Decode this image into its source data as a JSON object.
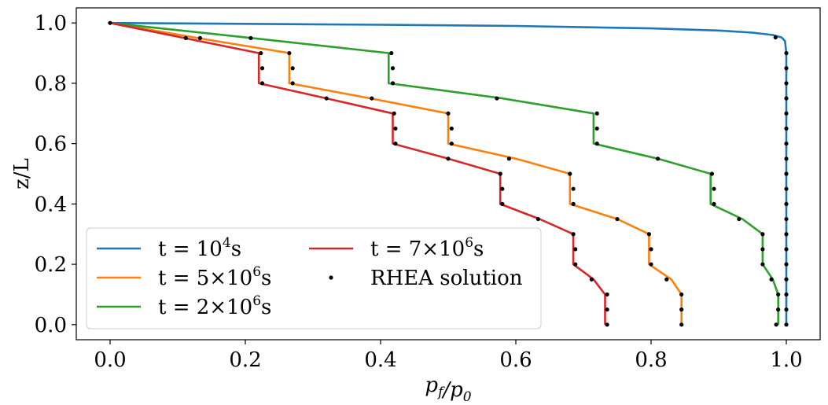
{
  "chart_data": {
    "type": "line",
    "xlabel": "p_f/p_0",
    "ylabel": "z/L",
    "xlim": [
      -0.05,
      1.05
    ],
    "ylim": [
      -0.05,
      1.05
    ],
    "xticks": [
      "0.0",
      "0.2",
      "0.4",
      "0.6",
      "0.8",
      "1.0"
    ],
    "xtick_values": [
      0.0,
      0.2,
      0.4,
      0.6,
      0.8,
      1.0
    ],
    "yticks": [
      "0.0",
      "0.2",
      "0.4",
      "0.6",
      "0.8",
      "1.0"
    ],
    "ytick_values": [
      0.0,
      0.2,
      0.4,
      0.6,
      0.8,
      1.0
    ],
    "legend_position": "bottom-left",
    "legend_columns": 2,
    "series": [
      {
        "name": "t = 10⁴s",
        "label_parts": {
          "prefix": "t = 10",
          "sup": "4",
          "suffix": "s"
        },
        "color": "#1f77b4",
        "points": [
          [
            0.0,
            1.0
          ],
          [
            0.2,
            0.997
          ],
          [
            0.4,
            0.994
          ],
          [
            0.6,
            0.99
          ],
          [
            0.7,
            0.986
          ],
          [
            0.8,
            0.982
          ],
          [
            0.9,
            0.975
          ],
          [
            0.95,
            0.968
          ],
          [
            0.98,
            0.96
          ],
          [
            0.993,
            0.952
          ],
          [
            0.998,
            0.94
          ],
          [
            1.0,
            0.9
          ],
          [
            1.0,
            0.0
          ]
        ]
      },
      {
        "name": "t = 5×10⁶s",
        "label_parts": {
          "prefix": "t = 5×10",
          "sup": "6",
          "suffix": "s"
        },
        "color": "#ff7f0e",
        "points": [
          [
            0.0,
            1.0
          ],
          [
            0.13,
            0.95
          ],
          [
            0.265,
            0.9
          ],
          [
            0.265,
            0.8
          ],
          [
            0.385,
            0.75
          ],
          [
            0.5,
            0.7
          ],
          [
            0.5,
            0.6
          ],
          [
            0.6,
            0.55
          ],
          [
            0.68,
            0.5
          ],
          [
            0.68,
            0.4
          ],
          [
            0.75,
            0.35
          ],
          [
            0.797,
            0.3
          ],
          [
            0.797,
            0.2
          ],
          [
            0.83,
            0.15
          ],
          [
            0.845,
            0.1
          ],
          [
            0.845,
            0.0
          ]
        ]
      },
      {
        "name": "t = 2×10⁶s",
        "label_parts": {
          "prefix": "t = 2×10",
          "sup": "6",
          "suffix": "s"
        },
        "color": "#2ca02c",
        "points": [
          [
            0.0,
            1.0
          ],
          [
            0.21,
            0.95
          ],
          [
            0.412,
            0.9
          ],
          [
            0.412,
            0.8
          ],
          [
            0.58,
            0.75
          ],
          [
            0.715,
            0.7
          ],
          [
            0.715,
            0.6
          ],
          [
            0.81,
            0.55
          ],
          [
            0.888,
            0.5
          ],
          [
            0.888,
            0.4
          ],
          [
            0.935,
            0.35
          ],
          [
            0.965,
            0.3
          ],
          [
            0.965,
            0.2
          ],
          [
            0.98,
            0.15
          ],
          [
            0.988,
            0.1
          ],
          [
            0.988,
            0.0
          ]
        ]
      },
      {
        "name": "t = 7×10⁶s",
        "label_parts": {
          "prefix": "t = 7×10",
          "sup": "6",
          "suffix": "s"
        },
        "color": "#d62728",
        "points": [
          [
            0.0,
            1.0
          ],
          [
            0.11,
            0.95
          ],
          [
            0.22,
            0.9
          ],
          [
            0.22,
            0.8
          ],
          [
            0.32,
            0.75
          ],
          [
            0.418,
            0.7
          ],
          [
            0.418,
            0.6
          ],
          [
            0.5,
            0.55
          ],
          [
            0.577,
            0.5
          ],
          [
            0.577,
            0.4
          ],
          [
            0.635,
            0.35
          ],
          [
            0.685,
            0.3
          ],
          [
            0.685,
            0.2
          ],
          [
            0.715,
            0.15
          ],
          [
            0.732,
            0.1
          ],
          [
            0.732,
            0.0
          ]
        ]
      },
      {
        "name": "RHEA solution",
        "color": "#000000",
        "markers_only": true,
        "points": [
          [
            0.0,
            1.0
          ],
          [
            0.112,
            0.95
          ],
          [
            0.133,
            0.95
          ],
          [
            0.208,
            0.95
          ],
          [
            0.984,
            0.952
          ],
          [
            0.223,
            0.9
          ],
          [
            0.265,
            0.9
          ],
          [
            0.416,
            0.9
          ],
          [
            1.0,
            0.9
          ],
          [
            0.225,
            0.85
          ],
          [
            0.27,
            0.85
          ],
          [
            0.418,
            0.85
          ],
          [
            1.0,
            0.85
          ],
          [
            0.225,
            0.8
          ],
          [
            0.27,
            0.8
          ],
          [
            0.418,
            0.8
          ],
          [
            1.0,
            0.8
          ],
          [
            0.32,
            0.75
          ],
          [
            0.387,
            0.75
          ],
          [
            0.572,
            0.75
          ],
          [
            1.0,
            0.75
          ],
          [
            0.42,
            0.7
          ],
          [
            0.5,
            0.7
          ],
          [
            0.72,
            0.7
          ],
          [
            1.0,
            0.7
          ],
          [
            0.422,
            0.65
          ],
          [
            0.505,
            0.65
          ],
          [
            0.72,
            0.65
          ],
          [
            1.0,
            0.65
          ],
          [
            0.422,
            0.6
          ],
          [
            0.505,
            0.6
          ],
          [
            0.72,
            0.6
          ],
          [
            1.0,
            0.6
          ],
          [
            0.5,
            0.55
          ],
          [
            0.59,
            0.55
          ],
          [
            0.81,
            0.55
          ],
          [
            1.0,
            0.55
          ],
          [
            0.577,
            0.5
          ],
          [
            0.68,
            0.5
          ],
          [
            0.89,
            0.5
          ],
          [
            1.0,
            0.5
          ],
          [
            0.58,
            0.45
          ],
          [
            0.685,
            0.45
          ],
          [
            0.893,
            0.45
          ],
          [
            1.0,
            0.45
          ],
          [
            0.58,
            0.4
          ],
          [
            0.685,
            0.4
          ],
          [
            0.893,
            0.4
          ],
          [
            1.0,
            0.4
          ],
          [
            0.633,
            0.35
          ],
          [
            0.75,
            0.35
          ],
          [
            0.93,
            0.35
          ],
          [
            1.0,
            0.35
          ],
          [
            0.685,
            0.3
          ],
          [
            0.797,
            0.3
          ],
          [
            0.965,
            0.3
          ],
          [
            1.0,
            0.3
          ],
          [
            0.688,
            0.25
          ],
          [
            0.8,
            0.25
          ],
          [
            0.965,
            0.25
          ],
          [
            1.0,
            0.25
          ],
          [
            0.688,
            0.2
          ],
          [
            0.8,
            0.2
          ],
          [
            0.965,
            0.2
          ],
          [
            1.0,
            0.2
          ],
          [
            0.712,
            0.15
          ],
          [
            0.823,
            0.15
          ],
          [
            0.978,
            0.15
          ],
          [
            1.0,
            0.15
          ],
          [
            0.735,
            0.1
          ],
          [
            0.845,
            0.1
          ],
          [
            0.988,
            0.1
          ],
          [
            1.0,
            0.1
          ],
          [
            0.735,
            0.05
          ],
          [
            0.845,
            0.05
          ],
          [
            0.988,
            0.05
          ],
          [
            1.0,
            0.05
          ],
          [
            0.735,
            0.0
          ],
          [
            0.845,
            0.0
          ],
          [
            0.985,
            0.0
          ],
          [
            1.0,
            0.0
          ]
        ]
      }
    ]
  }
}
